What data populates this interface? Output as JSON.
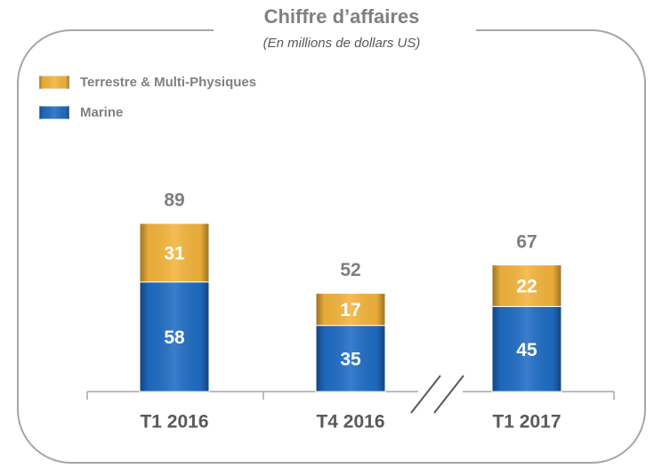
{
  "chart_data": {
    "type": "stacked_bar",
    "title": "Chiffre d’affaires",
    "subtitle": "(En millions de dollars US)",
    "categories": [
      "T1 2016",
      "T4 2016",
      "T1 2017"
    ],
    "series": [
      {
        "name": "Marine",
        "color": "#1f6cc4",
        "values": [
          58,
          35,
          45
        ]
      },
      {
        "name": "Terrestre & Multi-Physiques",
        "color": "#f3b43c",
        "values": [
          31,
          17,
          22
        ]
      }
    ],
    "totals": [
      89,
      52,
      67
    ]
  }
}
